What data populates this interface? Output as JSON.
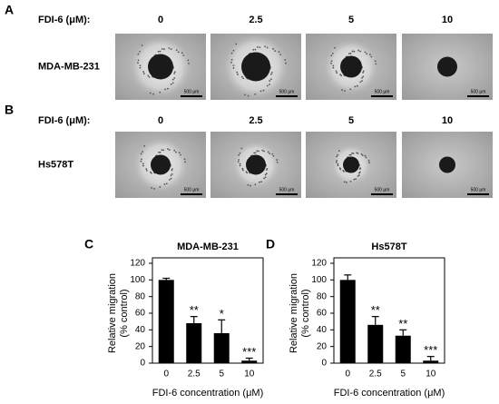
{
  "image_panels": [
    {
      "letter": "A",
      "row_label": "FDI-6 (μM):",
      "concentrations": [
        "0",
        "2.5",
        "5",
        "10"
      ],
      "cell_line": "MDA-MB-231",
      "scale_bar": "500 μm"
    },
    {
      "letter": "B",
      "row_label": "FDI-6 (μM):",
      "concentrations": [
        "0",
        "2.5",
        "5",
        "10"
      ],
      "cell_line": "Hs578T",
      "scale_bar": "500 μm"
    }
  ],
  "chart_data": [
    {
      "type": "bar",
      "panel": "C",
      "title": "MDA-MB-231",
      "x_label": "FDI-6 concentration (μM)",
      "y_label": [
        "Relative migration",
        "(% control)"
      ],
      "categories": [
        "0",
        "2.5",
        "5",
        "10"
      ],
      "values": [
        100,
        48,
        36,
        3
      ],
      "errors": [
        2,
        8,
        16,
        3
      ],
      "annotations": [
        null,
        "**",
        "*",
        "***"
      ],
      "color": "#000000",
      "ylim": [
        0,
        120
      ],
      "yticks": [
        0,
        20,
        40,
        60,
        80,
        100,
        120
      ]
    },
    {
      "type": "bar",
      "panel": "D",
      "title": "Hs578T",
      "x_label": "FDI-6 concentration (μM)",
      "y_label": [
        "Relative migration",
        "(% control)"
      ],
      "categories": [
        "0",
        "2.5",
        "5",
        "10"
      ],
      "values": [
        100,
        46,
        33,
        3
      ],
      "errors": [
        6,
        10,
        7,
        5
      ],
      "annotations": [
        null,
        "**",
        "**",
        "***"
      ],
      "color": "#000000",
      "ylim": [
        0,
        120
      ],
      "yticks": [
        0,
        20,
        40,
        60,
        80,
        100,
        120
      ]
    }
  ]
}
